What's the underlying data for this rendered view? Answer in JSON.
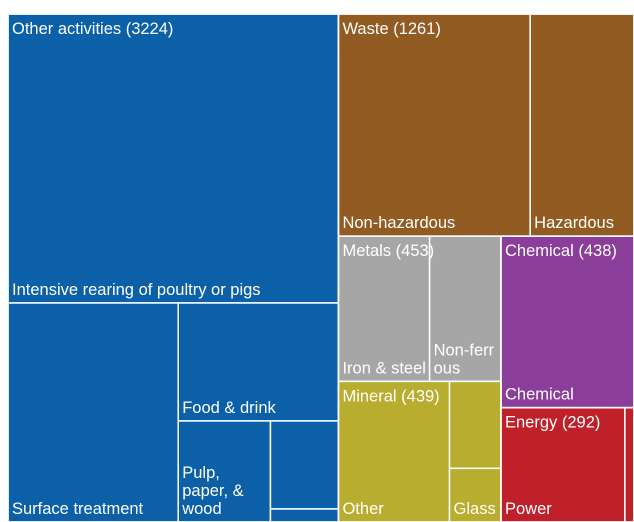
{
  "chart_data": {
    "type": "treemap",
    "groups": [
      {
        "label": "Other activities (3224)",
        "value": 3224,
        "color": "#0b60a8",
        "children": [
          {
            "name": "Intensive rearing of poultry or pigs",
            "value": 1834
          },
          {
            "name": "Surface treatment",
            "value": 716
          },
          {
            "name": "Food & drink",
            "value": 363
          },
          {
            "name": "Pulp, paper, & wood",
            "value": 179
          },
          {
            "name": null,
            "value": 115
          },
          {
            "name": null,
            "value": 17
          }
        ]
      },
      {
        "label": "Waste (1261)",
        "value": 1261,
        "color": "#925b22",
        "children": [
          {
            "name": "Non-hazardous",
            "value": 818
          },
          {
            "name": "Hazardous",
            "value": 443
          }
        ]
      },
      {
        "label": "Metals (453)",
        "value": 453,
        "color": "#a6a6a6",
        "children": [
          {
            "name": "Iron & steel",
            "value": 254
          },
          {
            "name": "Non-ferrous",
            "value": 199
          }
        ]
      },
      {
        "label": "Chemical (438)",
        "value": 438,
        "color": "#8b3d9a",
        "children": [
          {
            "name": "Chemical",
            "value": 438
          }
        ]
      },
      {
        "label": "Mineral (439)",
        "value": 439,
        "color": "#b8ad2e",
        "children": [
          {
            "name": "Other",
            "value": 300
          },
          {
            "name": null,
            "value": 86
          },
          {
            "name": "Glass",
            "value": 53
          }
        ]
      },
      {
        "label": "Energy (292)",
        "value": 292,
        "color": "#c0202a",
        "children": [
          {
            "name": "Power",
            "value": 272
          },
          {
            "name": null,
            "value": 20
          }
        ]
      }
    ]
  }
}
